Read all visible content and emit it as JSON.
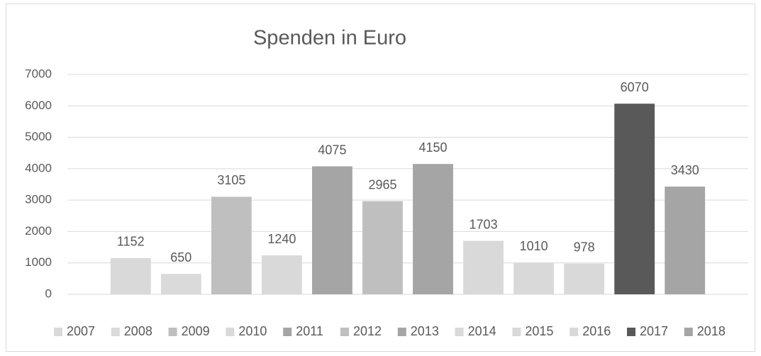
{
  "chart_data": {
    "type": "bar",
    "title": "Spenden in Euro",
    "categories": [
      null
    ],
    "series": [
      {
        "name": "2007",
        "color": "#d9d9d9",
        "values": [
          1152
        ]
      },
      {
        "name": "2008",
        "color": "#dadada",
        "values": [
          650
        ]
      },
      {
        "name": "2009",
        "color": "#bfbfbf",
        "values": [
          3105
        ]
      },
      {
        "name": "2010",
        "color": "#d9d9d9",
        "values": [
          1240
        ]
      },
      {
        "name": "2011",
        "color": "#a5a5a5",
        "values": [
          4075
        ]
      },
      {
        "name": "2012",
        "color": "#bfbfbf",
        "values": [
          2965
        ]
      },
      {
        "name": "2013",
        "color": "#a5a5a5",
        "values": [
          4150
        ]
      },
      {
        "name": "2014",
        "color": "#d9d9d9",
        "values": [
          1703
        ]
      },
      {
        "name": "2015",
        "color": "#d9d9d9",
        "values": [
          1010
        ]
      },
      {
        "name": "2016",
        "color": "#d9d9d9",
        "values": [
          978
        ]
      },
      {
        "name": "2017",
        "color": "#595959",
        "values": [
          6070
        ]
      },
      {
        "name": "2018",
        "color": "#a5a5a5",
        "values": [
          3430
        ]
      }
    ],
    "ylim": [
      0,
      7000
    ],
    "yticks": [
      0,
      1000,
      2000,
      3000,
      4000,
      5000,
      6000,
      7000
    ],
    "grid": true,
    "legend": "bottom"
  }
}
